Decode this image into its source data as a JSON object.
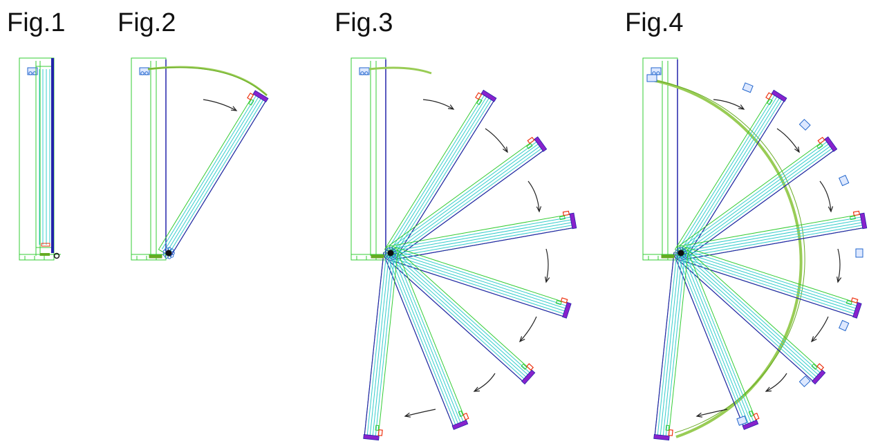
{
  "figures": [
    {
      "label": "Fig.1"
    },
    {
      "label": "Fig.2"
    },
    {
      "label": "Fig.3"
    },
    {
      "label": "Fig.4"
    }
  ],
  "colors": {
    "background": "#ffffff",
    "text": "#111111",
    "frame": "#33cc33",
    "panel": "#33cccc",
    "edge": "#2222aa",
    "hinge": "#8822cc",
    "bracket": "#ee3311",
    "arrow": "#222222",
    "track_outer": "#99cc55",
    "track_inner": "#66aa22",
    "roller": "#2266cc"
  }
}
